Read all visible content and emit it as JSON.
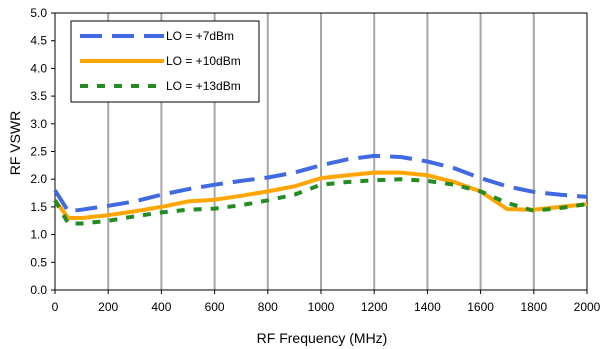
{
  "chart_data": {
    "type": "line",
    "xlabel": "RF Frequency (MHz)",
    "ylabel": "RF VSWR",
    "xlim": [
      0,
      2000
    ],
    "ylim": [
      0.0,
      5.0
    ],
    "xticks": [
      "0",
      "200",
      "400",
      "600",
      "800",
      "1000",
      "1200",
      "1400",
      "1600",
      "1800",
      "2000"
    ],
    "yticks": [
      "0.0",
      "0.5",
      "1.0",
      "1.5",
      "2.0",
      "2.5",
      "3.0",
      "3.5",
      "4.0",
      "4.5",
      "5.0"
    ],
    "grid": "vertical",
    "legend_position": "top-left",
    "series": [
      {
        "name": "LO = +7dBm",
        "color": "#4169E1",
        "style": "long-dash",
        "x": [
          0,
          50,
          100,
          200,
          300,
          400,
          500,
          600,
          700,
          800,
          900,
          1000,
          1100,
          1200,
          1300,
          1400,
          1500,
          1600,
          1700,
          1800,
          1900,
          2000
        ],
        "y": [
          1.8,
          1.42,
          1.45,
          1.52,
          1.6,
          1.72,
          1.82,
          1.9,
          1.97,
          2.03,
          2.12,
          2.25,
          2.36,
          2.42,
          2.4,
          2.32,
          2.2,
          2.02,
          1.87,
          1.77,
          1.72,
          1.68
        ]
      },
      {
        "name": "LO = +10dBm",
        "color": "#FFA500",
        "style": "solid",
        "x": [
          0,
          50,
          100,
          200,
          300,
          400,
          500,
          600,
          700,
          800,
          900,
          1000,
          1100,
          1200,
          1300,
          1400,
          1500,
          1600,
          1700,
          1800,
          1900,
          2000
        ],
        "y": [
          1.62,
          1.3,
          1.3,
          1.35,
          1.42,
          1.5,
          1.6,
          1.63,
          1.7,
          1.78,
          1.87,
          2.02,
          2.07,
          2.12,
          2.12,
          2.07,
          1.95,
          1.78,
          1.46,
          1.45,
          1.5,
          1.55
        ]
      },
      {
        "name": "LO = +13dBm",
        "color": "#228B22",
        "style": "short-dash",
        "x": [
          0,
          50,
          100,
          200,
          300,
          400,
          500,
          600,
          700,
          800,
          900,
          1000,
          1100,
          1200,
          1300,
          1400,
          1500,
          1600,
          1700,
          1800,
          1900,
          2000
        ],
        "y": [
          1.62,
          1.2,
          1.2,
          1.25,
          1.33,
          1.4,
          1.45,
          1.47,
          1.53,
          1.62,
          1.72,
          1.9,
          1.95,
          1.98,
          2.0,
          1.97,
          1.9,
          1.78,
          1.57,
          1.43,
          1.48,
          1.55
        ]
      }
    ]
  }
}
